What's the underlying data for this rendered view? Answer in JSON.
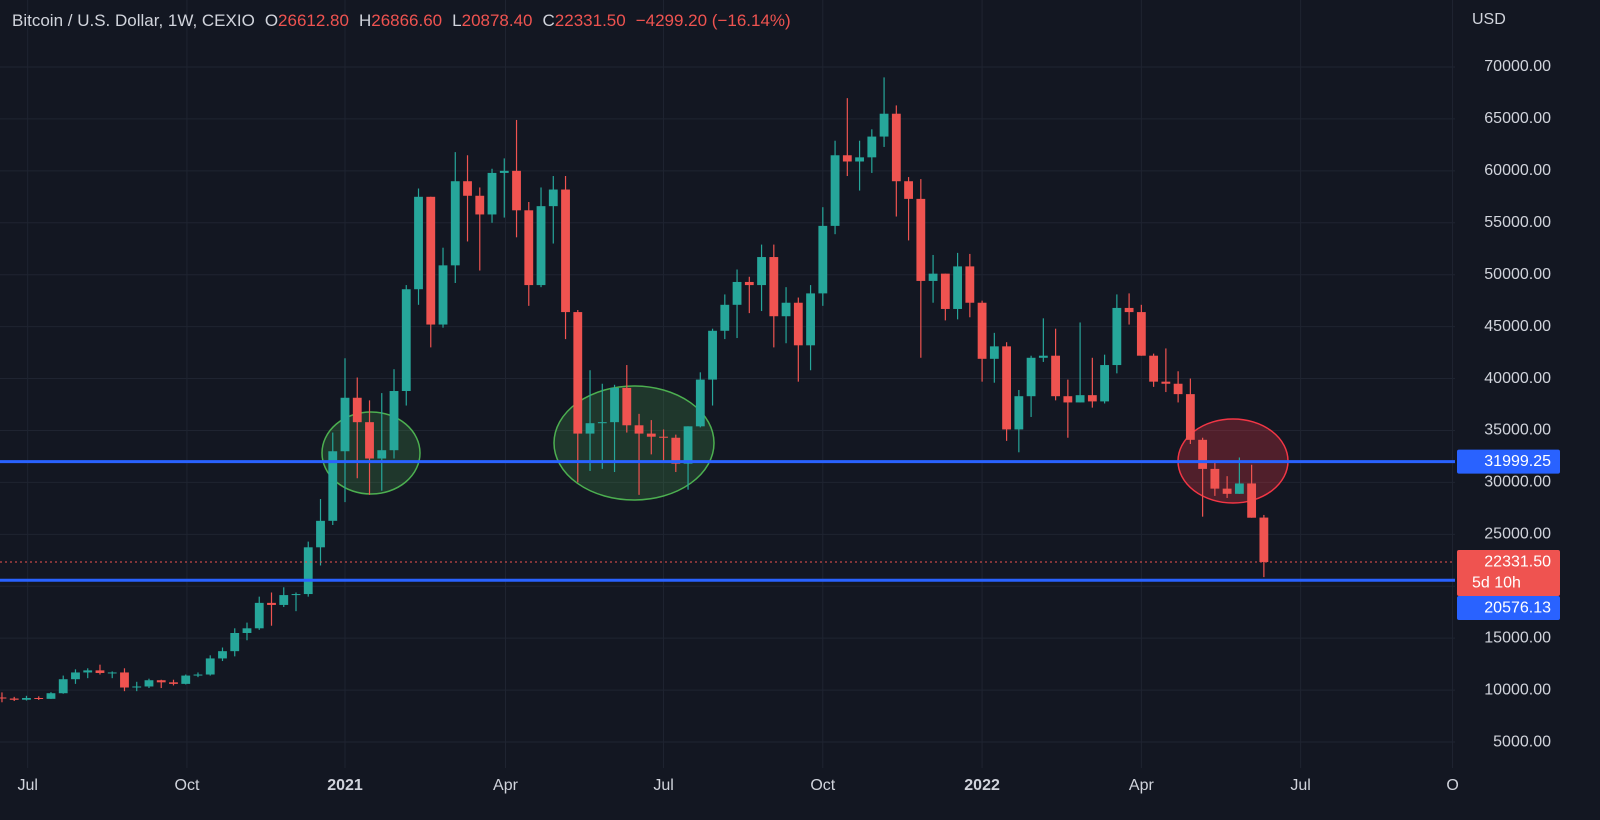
{
  "legend": {
    "title": "Bitcoin / U.S. Dollar, 1W, CEXIO",
    "items": [
      {
        "key": "O",
        "value": "26612.80"
      },
      {
        "key": "H",
        "value": "26866.60"
      },
      {
        "key": "L",
        "value": "20878.40"
      },
      {
        "key": "C",
        "value": "22331.50"
      }
    ],
    "change": "−4299.20 (−16.14%)"
  },
  "chart_data": {
    "type": "candlestick",
    "y_axis_unit": "USD",
    "up_color": "#26a69a",
    "down_color": "#ef5350",
    "grid": true,
    "categories": [
      null,
      null,
      null,
      null,
      null,
      null,
      null,
      null,
      null,
      null,
      null,
      null,
      null,
      null,
      null,
      null,
      null,
      null,
      null,
      null,
      null,
      null,
      null,
      null,
      null,
      null,
      null,
      null,
      null,
      null,
      null,
      null,
      null,
      null,
      null,
      null,
      null,
      null,
      null,
      null,
      null,
      null,
      null,
      null,
      null,
      null,
      null,
      null,
      null,
      null,
      null,
      null,
      null,
      null,
      null,
      null,
      null,
      null,
      null,
      null,
      null,
      null,
      null,
      null,
      null,
      null,
      null,
      null,
      null,
      null,
      null,
      null,
      null,
      null,
      null,
      null,
      null,
      null,
      null,
      null,
      null,
      null,
      null,
      null,
      null,
      null,
      null,
      null,
      null,
      null,
      null,
      null,
      null,
      null,
      null,
      null,
      null,
      null,
      null,
      null,
      null,
      null,
      null,
      null
    ],
    "open": [
      9290,
      9190,
      9070,
      9240,
      9160,
      9700,
      11050,
      11700,
      11900,
      11650,
      11700,
      10250,
      10350,
      10950,
      10750,
      10600,
      11400,
      11500,
      13050,
      13750,
      15500,
      15950,
      18400,
      18200,
      19150,
      19250,
      23750,
      26300,
      33000,
      38150,
      35800,
      32300,
      33100,
      38800,
      48600,
      57500,
      45200,
      50900,
      59000,
      57600,
      55800,
      59800,
      60000,
      56200,
      49000,
      56600,
      58200,
      46400,
      34700,
      35700,
      35800,
      39100,
      35500,
      34700,
      34400,
      34300,
      31800,
      35400,
      39900,
      44600,
      47100,
      49300,
      49000,
      51700,
      46000,
      47300,
      43200,
      48200,
      54700,
      61500,
      60900,
      61300,
      63300,
      65500,
      59000,
      57300,
      49400,
      50100,
      46700,
      50800,
      47300,
      41900,
      43100,
      35100,
      38300,
      42000,
      42200,
      38300,
      37700,
      38400,
      37800,
      41300,
      46800,
      46400,
      42200,
      39700,
      39500,
      38500,
      34100,
      31300,
      29400,
      28900,
      29900,
      26612.8
    ],
    "high": [
      9780,
      9350,
      9450,
      9400,
      9800,
      11400,
      12000,
      12100,
      12450,
      11800,
      12100,
      10800,
      11100,
      11000,
      11000,
      11500,
      11700,
      13350,
      14100,
      15950,
      16500,
      19000,
      19400,
      19900,
      19400,
      24300,
      28400,
      34800,
      41950,
      40100,
      37900,
      38600,
      40900,
      49000,
      58300,
      57500,
      52600,
      61800,
      61500,
      58400,
      60200,
      61200,
      64900,
      57000,
      58400,
      59500,
      59500,
      46600,
      40800,
      39500,
      39400,
      41300,
      36600,
      36000,
      35100,
      34600,
      35400,
      40600,
      44800,
      48100,
      50500,
      49800,
      52900,
      52900,
      48800,
      47800,
      49000,
      56500,
      62900,
      67000,
      62900,
      64000,
      69000,
      66300,
      59400,
      59200,
      51900,
      50100,
      52100,
      52000,
      47500,
      44400,
      43500,
      38900,
      42200,
      45800,
      44800,
      39900,
      45400,
      42000,
      42300,
      48100,
      48200,
      47100,
      42400,
      42900,
      40700,
      40000,
      34300,
      31900,
      30600,
      32400,
      31700,
      26866.6
    ],
    "low": [
      8830,
      8950,
      9000,
      9050,
      9150,
      9650,
      10600,
      11150,
      11500,
      11150,
      9900,
      9900,
      10200,
      10200,
      10450,
      10550,
      11250,
      11400,
      12800,
      13250,
      14800,
      15800,
      16200,
      18000,
      17600,
      19000,
      22000,
      25900,
      28100,
      30400,
      28800,
      29200,
      32300,
      37400,
      47100,
      43000,
      44900,
      49200,
      53200,
      50400,
      55000,
      55500,
      53600,
      47000,
      48800,
      53000,
      43800,
      30000,
      31100,
      31300,
      31000,
      34800,
      28800,
      32700,
      32100,
      31000,
      29300,
      35300,
      37400,
      43800,
      43900,
      46300,
      46500,
      43000,
      43400,
      39700,
      40800,
      47000,
      53900,
      59500,
      58100,
      59800,
      62300,
      55600,
      53300,
      42000,
      47300,
      45600,
      45700,
      45900,
      39700,
      39600,
      34000,
      32900,
      36300,
      41600,
      37900,
      34300,
      37700,
      37200,
      37600,
      40500,
      45200,
      42200,
      39200,
      38700,
      37700,
      33700,
      26700,
      28700,
      28500,
      28900,
      26600,
      20878.4
    ],
    "close": [
      9190,
      9070,
      9240,
      9160,
      9700,
      11050,
      11700,
      11900,
      11650,
      11700,
      10250,
      10350,
      10950,
      10750,
      10600,
      11400,
      11500,
      13050,
      13750,
      15500,
      15950,
      18400,
      18200,
      19150,
      19250,
      23750,
      26300,
      33000,
      38150,
      35800,
      32300,
      33100,
      38800,
      48600,
      57500,
      45200,
      50900,
      59000,
      57600,
      55800,
      59800,
      60000,
      56200,
      49000,
      56600,
      58200,
      46400,
      34700,
      35700,
      35800,
      39100,
      35500,
      34700,
      34400,
      34300,
      31800,
      35400,
      39900,
      44600,
      47100,
      49300,
      49000,
      51700,
      46000,
      47300,
      43200,
      48200,
      54700,
      61500,
      60900,
      61300,
      63300,
      65500,
      59000,
      57300,
      49400,
      50100,
      46700,
      50800,
      47300,
      41900,
      43100,
      35100,
      38300,
      42000,
      42200,
      38300,
      37700,
      38400,
      37800,
      41300,
      46800,
      46400,
      42200,
      39700,
      39500,
      38500,
      34100,
      31300,
      29400,
      28900,
      29900,
      26600,
      22331.5
    ],
    "xlim": [
      -0.16,
      118.6
    ],
    "xticks": [
      {
        "value": 2.1,
        "label": "Jul"
      },
      {
        "value": 15.1,
        "label": "Oct"
      },
      {
        "value": 28.0,
        "label": "2021"
      },
      {
        "value": 41.1,
        "label": "Apr"
      },
      {
        "value": 54.0,
        "label": "Jul"
      },
      {
        "value": 67.0,
        "label": "Oct"
      },
      {
        "value": 80.0,
        "label": "2022"
      },
      {
        "value": 93.0,
        "label": "Apr"
      },
      {
        "value": 106.0,
        "label": "Jul"
      },
      {
        "value": 118.4,
        "label": "O"
      }
    ],
    "ylim": [
      2500,
      76450
    ],
    "yticks": [
      {
        "value": 5000,
        "label": "5000.00"
      },
      {
        "value": 10000,
        "label": "10000.00"
      },
      {
        "value": 15000,
        "label": "15000.00"
      },
      {
        "value": 20000,
        "label": "20000.00"
      },
      {
        "value": 25000,
        "label": "25000.00"
      },
      {
        "value": 30000,
        "label": "30000.00"
      },
      {
        "value": 35000,
        "label": "35000.00"
      },
      {
        "value": 40000,
        "label": "40000.00"
      },
      {
        "value": 45000,
        "label": "45000.00"
      },
      {
        "value": 50000,
        "label": "50000.00"
      },
      {
        "value": 55000,
        "label": "55000.00"
      },
      {
        "value": 60000,
        "label": "60000.00"
      },
      {
        "value": 65000,
        "label": "65000.00"
      },
      {
        "value": 70000,
        "label": "70000.00"
      }
    ],
    "hlines": [
      {
        "value": 31999.25,
        "color": "#2962ff"
      },
      {
        "value": 20576.13,
        "color": "#2962ff"
      }
    ],
    "price_line": {
      "value": 22331.5,
      "label": "22331.50",
      "countdown": "5d 10h",
      "color": "#ef5350"
    }
  }
}
